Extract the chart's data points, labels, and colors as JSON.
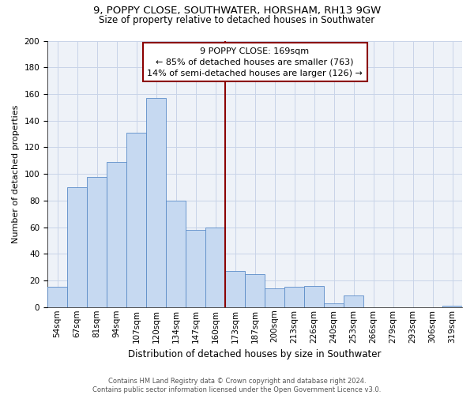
{
  "title": "9, POPPY CLOSE, SOUTHWATER, HORSHAM, RH13 9GW",
  "subtitle": "Size of property relative to detached houses in Southwater",
  "xlabel": "Distribution of detached houses by size in Southwater",
  "ylabel": "Number of detached properties",
  "bin_labels": [
    "54sqm",
    "67sqm",
    "81sqm",
    "94sqm",
    "107sqm",
    "120sqm",
    "134sqm",
    "147sqm",
    "160sqm",
    "173sqm",
    "187sqm",
    "200sqm",
    "213sqm",
    "226sqm",
    "240sqm",
    "253sqm",
    "266sqm",
    "279sqm",
    "293sqm",
    "306sqm",
    "319sqm"
  ],
  "bin_values": [
    15,
    90,
    98,
    109,
    131,
    157,
    80,
    58,
    60,
    27,
    25,
    14,
    15,
    16,
    3,
    9,
    0,
    0,
    0,
    0,
    1
  ],
  "bar_color": "#c6d9f1",
  "bar_edge_color": "#5b8cc8",
  "property_line_x": 9,
  "property_line_label": "9 POPPY CLOSE: 169sqm",
  "annotation_line1": "← 85% of detached houses are smaller (763)",
  "annotation_line2": "14% of semi-detached houses are larger (126) →",
  "vline_color": "#8b0000",
  "ylim": [
    0,
    200
  ],
  "yticks": [
    0,
    20,
    40,
    60,
    80,
    100,
    120,
    140,
    160,
    180,
    200
  ],
  "footer1": "Contains HM Land Registry data © Crown copyright and database right 2024.",
  "footer2": "Contains public sector information licensed under the Open Government Licence v3.0.",
  "title_fontsize": 9.5,
  "subtitle_fontsize": 8.5,
  "ylabel_fontsize": 8,
  "xlabel_fontsize": 8.5,
  "tick_fontsize": 7.5,
  "footer_fontsize": 6,
  "annot_fontsize": 8
}
